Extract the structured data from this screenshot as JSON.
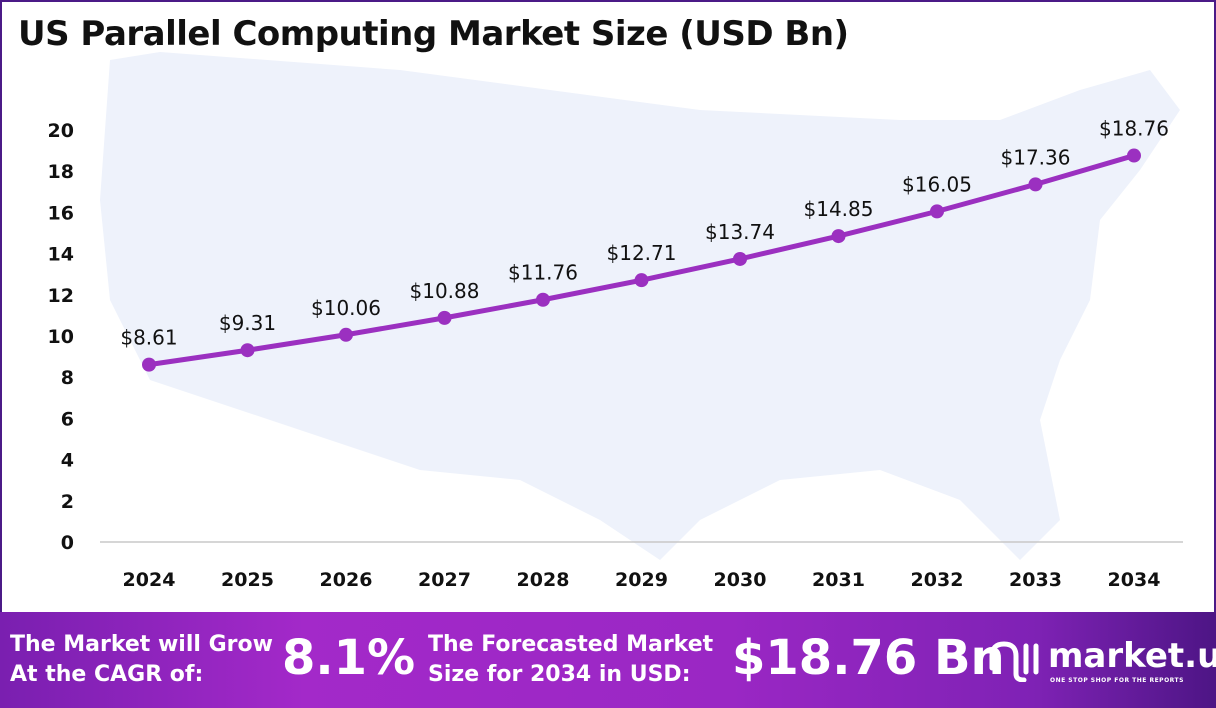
{
  "title": "US Parallel Computing Market Size (USD Bn)",
  "chart_data": {
    "type": "line",
    "title": "US Parallel Computing Market Size (USD Bn)",
    "xlabel": "",
    "ylabel": "",
    "categories": [
      "2024",
      "2025",
      "2026",
      "2027",
      "2028",
      "2029",
      "2030",
      "2031",
      "2032",
      "2033",
      "2034"
    ],
    "values": [
      8.61,
      9.31,
      10.06,
      10.88,
      11.76,
      12.71,
      13.74,
      14.85,
      16.05,
      17.36,
      18.76
    ],
    "labels": [
      "$8.61",
      "$9.31",
      "$10.06",
      "$10.88",
      "$11.76",
      "$12.71",
      "$13.74",
      "$14.85",
      "$16.05",
      "$17.36",
      "$18.76"
    ],
    "ylim": [
      0,
      20
    ],
    "yticks": [
      "0",
      "2",
      "4",
      "6",
      "8",
      "10",
      "12",
      "14",
      "16",
      "18",
      "20"
    ],
    "grid": false,
    "line_color": "#9b30c0"
  },
  "banner": {
    "cagr_label_1": "The Market will Grow",
    "cagr_label_2": "At the CAGR of:",
    "cagr_value": "8.1%",
    "forecast_label_1": "The Forecasted Market",
    "forecast_label_2": "Size for 2034 in USD:",
    "forecast_value": "$18.76 Bn",
    "logo_name": "market.us",
    "logo_tagline": "ONE STOP SHOP FOR THE REPORTS"
  }
}
